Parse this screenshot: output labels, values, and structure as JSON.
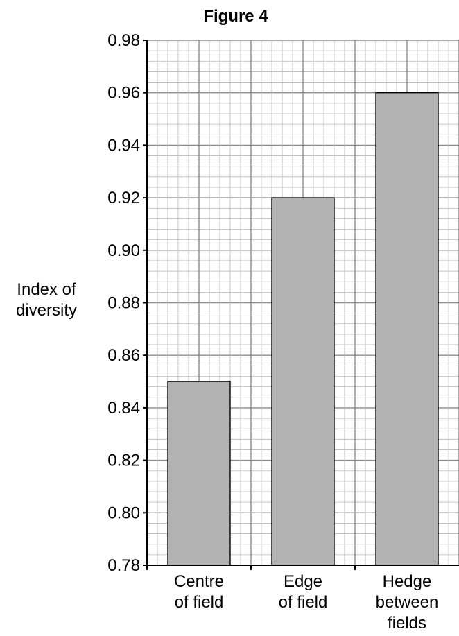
{
  "chart_data": {
    "type": "bar",
    "title": "Figure 4",
    "ylabel": [
      "Index of",
      "diversity"
    ],
    "xlabel": "",
    "categories": [
      [
        "Centre",
        "of field"
      ],
      [
        "Edge",
        "of field"
      ],
      [
        "Hedge",
        "between",
        "fields"
      ]
    ],
    "values": [
      0.85,
      0.92,
      0.96
    ],
    "ylim": [
      0.78,
      0.98
    ],
    "yticks": [
      "0.78",
      "0.80",
      "0.82",
      "0.84",
      "0.86",
      "0.88",
      "0.90",
      "0.92",
      "0.94",
      "0.96",
      "0.98"
    ],
    "grid": true,
    "bar_color": "#b3b3b3"
  }
}
